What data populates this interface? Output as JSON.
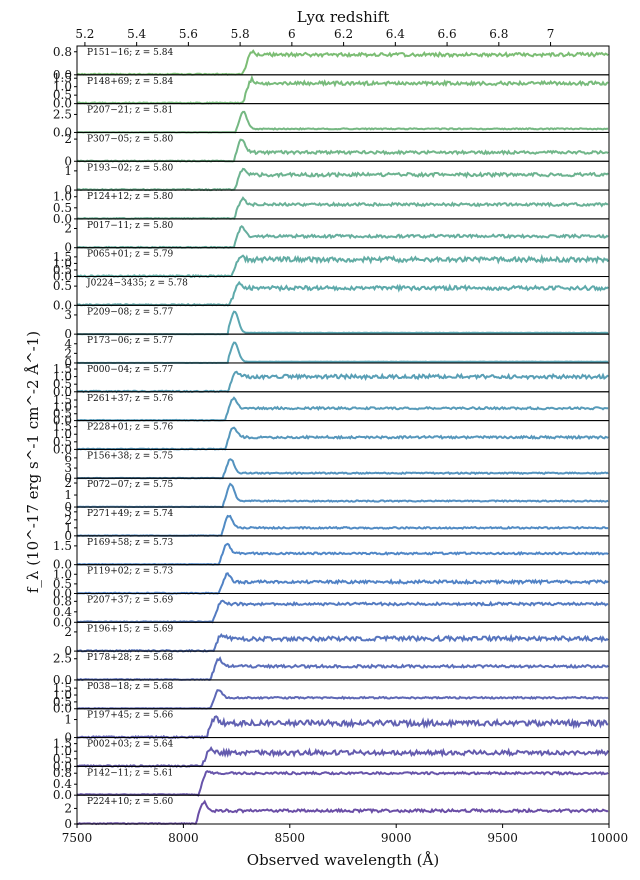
{
  "chart_data": {
    "type": "line",
    "title": "",
    "xlabel": "Observed wavelength (Å)",
    "ylabel": "f_λ (10^-17 erg s^-1 cm^-2 Å^-1)",
    "top_axis_label": "Lyα redshift",
    "xlim": [
      7500,
      10000
    ],
    "x_ticks": [
      7500,
      8000,
      8500,
      9000,
      9500,
      10000
    ],
    "top_ticks": [
      5.2,
      5.4,
      5.6,
      5.8,
      6,
      6.2,
      6.4,
      6.6,
      6.8,
      7
    ],
    "grid": false,
    "colormap": [
      "#7cbd74",
      "#5ca8b0",
      "#4f86c8",
      "#6a4ea6"
    ],
    "series": [
      {
        "name": "P151−16; z = 5.84",
        "z": 5.84,
        "ylim": [
          0,
          1.0
        ],
        "yticks": [
          0.0,
          0.8
        ],
        "break_wavelength": 8310,
        "continuum": 0.7,
        "line_peak": 0.85,
        "noise": 0.12
      },
      {
        "name": "P148+69; z = 5.84",
        "z": 5.84,
        "ylim": [
          0,
          1.7
        ],
        "yticks": [
          0.0,
          0.5,
          1.0,
          1.5
        ],
        "break_wavelength": 8310,
        "continuum": 1.2,
        "line_peak": 1.5,
        "noise": 0.2
      },
      {
        "name": "P207−21; z = 5.81",
        "z": 5.81,
        "ylim": [
          0,
          4.0
        ],
        "yticks": [
          0.0,
          2.5
        ],
        "break_wavelength": 8280,
        "continuum": 0.5,
        "line_peak": 3.0,
        "noise": 0.15
      },
      {
        "name": "P307−05; z = 5.80",
        "z": 5.8,
        "ylim": [
          0,
          2.6
        ],
        "yticks": [
          0,
          2
        ],
        "break_wavelength": 8270,
        "continuum": 0.8,
        "line_peak": 2.2,
        "noise": 0.25
      },
      {
        "name": "P193−02; z = 5.80",
        "z": 5.8,
        "ylim": [
          0,
          1.5
        ],
        "yticks": [
          0,
          1
        ],
        "break_wavelength": 8270,
        "continuum": 0.8,
        "line_peak": 1.1,
        "noise": 0.18
      },
      {
        "name": "P124+12; z = 5.80",
        "z": 5.8,
        "ylim": [
          0,
          1.3
        ],
        "yticks": [
          0.0,
          0.5,
          1.0
        ],
        "break_wavelength": 8270,
        "continuum": 0.65,
        "line_peak": 1.0,
        "noise": 0.12
      },
      {
        "name": "P017−11; z = 5.80",
        "z": 5.8,
        "ylim": [
          0,
          3.0
        ],
        "yticks": [
          0,
          2
        ],
        "break_wavelength": 8270,
        "continuum": 1.2,
        "line_peak": 2.4,
        "noise": 0.3
      },
      {
        "name": "P065+01; z = 5.79",
        "z": 5.79,
        "ylim": [
          0,
          2.2
        ],
        "yticks": [
          0.0,
          0.5,
          1.0,
          1.5
        ],
        "break_wavelength": 8260,
        "continuum": 1.3,
        "line_peak": 1.7,
        "noise": 0.35
      },
      {
        "name": "J0224−3435; z = 5.78",
        "z": 5.78,
        "ylim": [
          0,
          0.75
        ],
        "yticks": [
          0.0,
          0.5
        ],
        "break_wavelength": 8250,
        "continuum": 0.45,
        "line_peak": 0.6,
        "noise": 0.1
      },
      {
        "name": "P209−08; z = 5.77",
        "z": 5.77,
        "ylim": [
          0,
          4.5
        ],
        "yticks": [
          0,
          3
        ],
        "break_wavelength": 8240,
        "continuum": 0.2,
        "line_peak": 3.6,
        "noise": 0.06
      },
      {
        "name": "P173−06; z = 5.77",
        "z": 5.77,
        "ylim": [
          0,
          6.0
        ],
        "yticks": [
          0,
          2,
          4
        ],
        "break_wavelength": 8240,
        "continuum": 0.25,
        "line_peak": 4.3,
        "noise": 0.08
      },
      {
        "name": "P000−04; z = 5.77",
        "z": 5.77,
        "ylim": [
          0,
          1.9
        ],
        "yticks": [
          0.0,
          0.5,
          1.0,
          1.5
        ],
        "break_wavelength": 8240,
        "continuum": 1.0,
        "line_peak": 1.4,
        "noise": 0.25
      },
      {
        "name": "P261+37; z = 5.76",
        "z": 5.76,
        "ylim": [
          0,
          2.1
        ],
        "yticks": [
          0.0,
          0.5,
          1.0,
          1.5
        ],
        "break_wavelength": 8230,
        "continuum": 0.9,
        "line_peak": 1.8,
        "noise": 0.15
      },
      {
        "name": "P228+01; z = 5.76",
        "z": 5.76,
        "ylim": [
          0,
          1.9
        ],
        "yticks": [
          0.0,
          0.5,
          1.0,
          1.5
        ],
        "break_wavelength": 8230,
        "continuum": 0.8,
        "line_peak": 1.6,
        "noise": 0.15
      },
      {
        "name": "P156+38; z = 5.75",
        "z": 5.75,
        "ylim": [
          0,
          8.5
        ],
        "yticks": [
          0,
          3,
          6
        ],
        "break_wavelength": 8220,
        "continuum": 1.5,
        "line_peak": 6.0,
        "noise": 0.4
      },
      {
        "name": "P072−07; z = 5.75",
        "z": 5.75,
        "ylim": [
          0,
          2.4
        ],
        "yticks": [
          0,
          1,
          2
        ],
        "break_wavelength": 8220,
        "continuum": 0.5,
        "line_peak": 2.0,
        "noise": 0.1
      },
      {
        "name": "P271+49; z = 5.74",
        "z": 5.74,
        "ylim": [
          0,
          3.6
        ],
        "yticks": [
          0,
          1,
          2,
          3
        ],
        "break_wavelength": 8210,
        "continuum": 1.0,
        "line_peak": 2.7,
        "noise": 0.2
      },
      {
        "name": "P169+58; z = 5.73",
        "z": 5.73,
        "ylim": [
          0,
          2.3
        ],
        "yticks": [
          0.0,
          1.5
        ],
        "break_wavelength": 8200,
        "continuum": 0.9,
        "line_peak": 1.8,
        "noise": 0.15
      },
      {
        "name": "P119+02; z = 5.73",
        "z": 5.73,
        "ylim": [
          0,
          1.5
        ],
        "yticks": [
          0.0,
          0.5,
          1.0
        ],
        "break_wavelength": 8200,
        "continuum": 0.6,
        "line_peak": 1.1,
        "noise": 0.15
      },
      {
        "name": "P207+37; z = 5.69",
        "z": 5.69,
        "ylim": [
          0,
          1.1
        ],
        "yticks": [
          0.0,
          0.4,
          0.8
        ],
        "break_wavelength": 8170,
        "continuum": 0.7,
        "line_peak": 0.9,
        "noise": 0.1
      },
      {
        "name": "P196+15; z = 5.69",
        "z": 5.69,
        "ylim": [
          0,
          3.0
        ],
        "yticks": [
          0,
          2
        ],
        "break_wavelength": 8170,
        "continuum": 1.3,
        "line_peak": 1.8,
        "noise": 0.45
      },
      {
        "name": "P178+28; z = 5.68",
        "z": 5.68,
        "ylim": [
          0,
          3.4
        ],
        "yticks": [
          0.0,
          2.5
        ],
        "break_wavelength": 8160,
        "continuum": 1.6,
        "line_peak": 2.7,
        "noise": 0.3
      },
      {
        "name": "P038−18; z = 5.68",
        "z": 5.68,
        "ylim": [
          0,
          2.1
        ],
        "yticks": [
          0.0,
          0.5,
          1.0,
          1.5
        ],
        "break_wavelength": 8160,
        "continuum": 0.8,
        "line_peak": 1.5,
        "noise": 0.12
      },
      {
        "name": "P197+45; z = 5.66",
        "z": 5.66,
        "ylim": [
          0,
          1.6
        ],
        "yticks": [
          0,
          1
        ],
        "break_wavelength": 8140,
        "continuum": 0.8,
        "line_peak": 1.2,
        "noise": 0.3
      },
      {
        "name": "P002+03; z = 5.64",
        "z": 5.64,
        "ylim": [
          0,
          1.9
        ],
        "yticks": [
          0.0,
          0.5,
          1.0,
          1.5
        ],
        "break_wavelength": 8120,
        "continuum": 0.9,
        "line_peak": 1.3,
        "noise": 0.3
      },
      {
        "name": "P142−11; z = 5.61",
        "z": 5.61,
        "ylim": [
          0,
          1.05
        ],
        "yticks": [
          0.0,
          0.4,
          0.8
        ],
        "break_wavelength": 8100,
        "continuum": 0.8,
        "line_peak": 0.9,
        "noise": 0.08
      },
      {
        "name": "P224+10; z = 5.60",
        "z": 5.6,
        "ylim": [
          0,
          3.7
        ],
        "yticks": [
          0,
          2
        ],
        "break_wavelength": 8090,
        "continuum": 1.7,
        "line_peak": 3.0,
        "noise": 0.35
      }
    ]
  }
}
